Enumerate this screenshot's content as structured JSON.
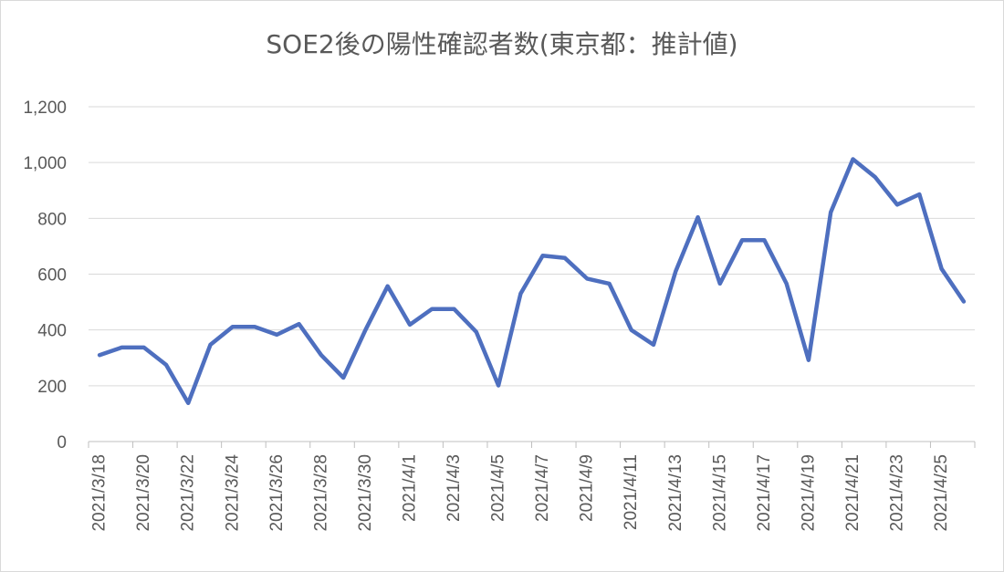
{
  "chart_data": {
    "type": "line",
    "title": "SOE2後の陽性確認者数(東京都：推計値)",
    "ylim": [
      0,
      1200
    ],
    "yticks": [
      0,
      200,
      400,
      600,
      800,
      1000,
      1200
    ],
    "ytick_labels": [
      "0",
      "200",
      "400",
      "600",
      "800",
      "1,000",
      "1,200"
    ],
    "grid": true,
    "legend": "none",
    "x": [
      "2021/3/18",
      "2021/3/19",
      "2021/3/20",
      "2021/3/21",
      "2021/3/22",
      "2021/3/23",
      "2021/3/24",
      "2021/3/25",
      "2021/3/26",
      "2021/3/27",
      "2021/3/28",
      "2021/3/29",
      "2021/3/30",
      "2021/3/31",
      "2021/4/1",
      "2021/4/2",
      "2021/4/3",
      "2021/4/4",
      "2021/4/5",
      "2021/4/6",
      "2021/4/7",
      "2021/4/8",
      "2021/4/9",
      "2021/4/10",
      "2021/4/11",
      "2021/4/12",
      "2021/4/13",
      "2021/4/14",
      "2021/4/15",
      "2021/4/16",
      "2021/4/17",
      "2021/4/18",
      "2021/4/19",
      "2021/4/20",
      "2021/4/21",
      "2021/4/22",
      "2021/4/23",
      "2021/4/24",
      "2021/4/25",
      "2021/4/26"
    ],
    "x_tick_labels": [
      "2021/3/18",
      "2021/3/20",
      "2021/3/22",
      "2021/3/24",
      "2021/3/26",
      "2021/3/28",
      "2021/3/30",
      "2021/4/1",
      "2021/4/3",
      "2021/4/5",
      "2021/4/7",
      "2021/4/9",
      "2021/4/11",
      "2021/4/13",
      "2021/4/15",
      "2021/4/17",
      "2021/4/19",
      "2021/4/21",
      "2021/4/23",
      "2021/4/25"
    ],
    "series": [
      {
        "values": [
          310,
          337,
          337,
          275,
          138,
          347,
          411,
          411,
          383,
          421,
          310,
          229,
          400,
          557,
          419,
          475,
          475,
          393,
          201,
          530,
          666,
          658,
          584,
          566,
          400,
          347,
          610,
          804,
          566,
          722,
          722,
          566,
          292,
          822,
          1012,
          948,
          849,
          886,
          619,
          502
        ],
        "color": "#4e6fbf"
      }
    ]
  }
}
